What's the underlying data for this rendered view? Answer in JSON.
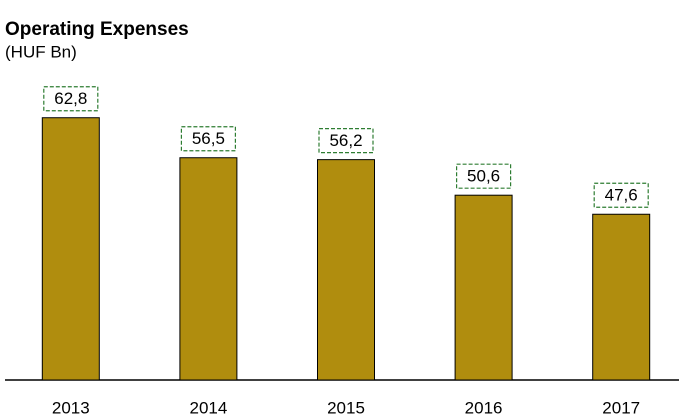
{
  "chart_data": {
    "type": "bar",
    "title": "Operating Expenses",
    "subtitle": "(HUF Bn)",
    "categories": [
      "2013",
      "2014",
      "2015",
      "2016",
      "2017"
    ],
    "values": [
      62.8,
      56.5,
      56.2,
      50.6,
      47.6
    ],
    "value_labels": [
      "62,8",
      "56,5",
      "56,2",
      "50,6",
      "47,6"
    ],
    "color": "#b08d0e",
    "label_border_color": "#2e7d32",
    "ylim": [
      21.5,
      70
    ]
  }
}
